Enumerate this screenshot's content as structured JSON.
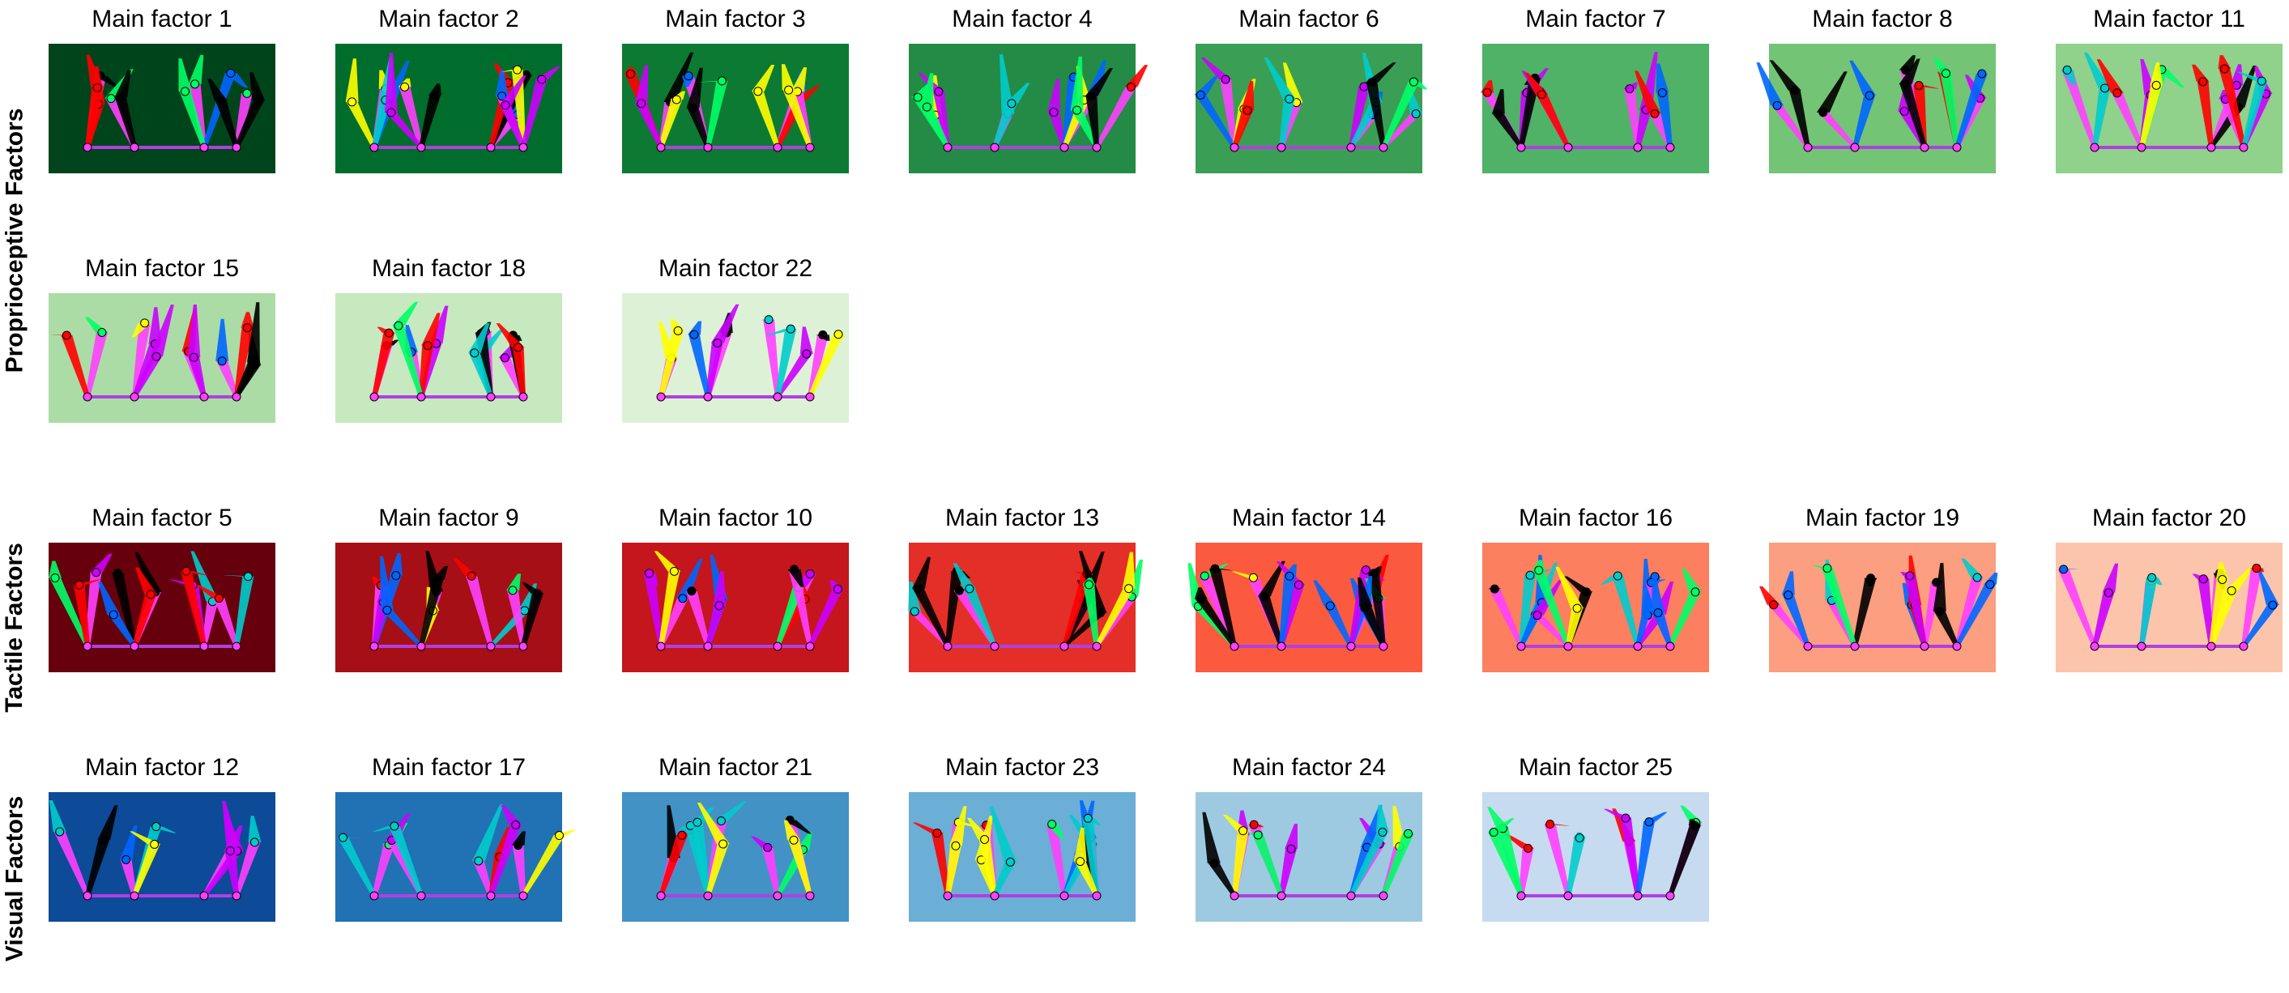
{
  "figure": {
    "groups": [
      {
        "label": "Proprioceptive Factors",
        "panels": [
          {
            "title": "Main factor 1",
            "bg": "#00441b",
            "variant": 0
          },
          {
            "title": "Main factor 2",
            "bg": "#006d2c",
            "variant": 1
          },
          {
            "title": "Main factor 3",
            "bg": "#0c7a32",
            "variant": 2
          },
          {
            "title": "Main factor 4",
            "bg": "#238b45",
            "variant": 3
          },
          {
            "title": "Main factor 6",
            "bg": "#3a9f55",
            "variant": 4
          },
          {
            "title": "Main factor 7",
            "bg": "#4fb266",
            "variant": 5
          },
          {
            "title": "Main factor 8",
            "bg": "#74c476",
            "variant": 6
          },
          {
            "title": "Main factor 11",
            "bg": "#90d18b",
            "variant": 7
          },
          {
            "title": "Main factor 15",
            "bg": "#abdca5",
            "variant": 8
          },
          {
            "title": "Main factor 18",
            "bg": "#c7e9c0",
            "variant": 9
          },
          {
            "title": "Main factor 22",
            "bg": "#ddf1d7",
            "variant": 10
          }
        ]
      },
      {
        "label": "Tactile Factors",
        "panels": [
          {
            "title": "Main factor 5",
            "bg": "#67000d",
            "variant": 11
          },
          {
            "title": "Main factor 9",
            "bg": "#a50f15",
            "variant": 12
          },
          {
            "title": "Main factor 10",
            "bg": "#c4161c",
            "variant": 13
          },
          {
            "title": "Main factor 13",
            "bg": "#e32f27",
            "variant": 14
          },
          {
            "title": "Main factor 14",
            "bg": "#fb5a3f",
            "variant": 15
          },
          {
            "title": "Main factor 16",
            "bg": "#fc7f5f",
            "variant": 16
          },
          {
            "title": "Main factor 19",
            "bg": "#fc9e80",
            "variant": 17
          },
          {
            "title": "Main factor 20",
            "bg": "#fcc5ab",
            "variant": 18
          }
        ]
      },
      {
        "label": "Visual Factors",
        "panels": [
          {
            "title": "Main factor 12",
            "bg": "#0d4a97",
            "variant": 19
          },
          {
            "title": "Main factor 17",
            "bg": "#2171b5",
            "variant": 20
          },
          {
            "title": "Main factor 21",
            "bg": "#4292c6",
            "variant": 21
          },
          {
            "title": "Main factor 23",
            "bg": "#6baed6",
            "variant": 22
          },
          {
            "title": "Main factor 24",
            "bg": "#9ecae1",
            "variant": 23
          },
          {
            "title": "Main factor 25",
            "bg": "#c6dbef",
            "variant": 24
          }
        ]
      }
    ],
    "limb_colors": [
      "#ff0000",
      "#ffff00",
      "#00ff66",
      "#0066ff",
      "#cc00ff",
      "#000000",
      "#00cccc"
    ],
    "base_color": "#b040e0",
    "joint_color": "#ff40ff"
  }
}
